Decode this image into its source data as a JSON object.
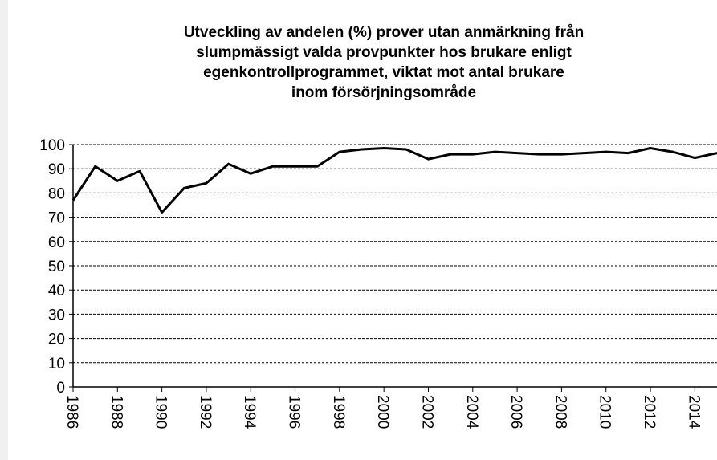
{
  "chart_data": {
    "type": "line",
    "title": [
      "Utveckling av andelen (%) prover utan anmärkning från",
      "slumpmässigt valda provpunkter hos brukare enligt",
      "egenkontrollprogrammet, viktat mot antal brukare",
      "inom försörjningsområde"
    ],
    "x": [
      1986,
      1987,
      1988,
      1989,
      1990,
      1991,
      1992,
      1993,
      1994,
      1995,
      1996,
      1997,
      1998,
      1999,
      2000,
      2001,
      2002,
      2003,
      2004,
      2005,
      2006,
      2007,
      2008,
      2009,
      2010,
      2011,
      2012,
      2013,
      2014,
      2015
    ],
    "values": [
      77,
      91,
      85,
      89,
      72,
      82,
      84,
      92,
      88,
      91,
      91,
      91,
      97,
      98,
      98.5,
      98,
      94,
      96,
      96,
      97,
      96.5,
      96,
      96,
      96.5,
      97,
      96.5,
      98.5,
      97,
      94.5,
      96.5
    ],
    "color": "#000000",
    "xlim": [
      1986,
      2015
    ],
    "xticks": [
      1986,
      1988,
      1990,
      1992,
      1994,
      1996,
      1998,
      2000,
      2002,
      2004,
      2006,
      2008,
      2010,
      2012,
      2014
    ],
    "ylim": [
      0,
      100
    ],
    "yticks": [
      0,
      10,
      20,
      30,
      40,
      50,
      60,
      70,
      80,
      90,
      100
    ],
    "grid": true
  }
}
